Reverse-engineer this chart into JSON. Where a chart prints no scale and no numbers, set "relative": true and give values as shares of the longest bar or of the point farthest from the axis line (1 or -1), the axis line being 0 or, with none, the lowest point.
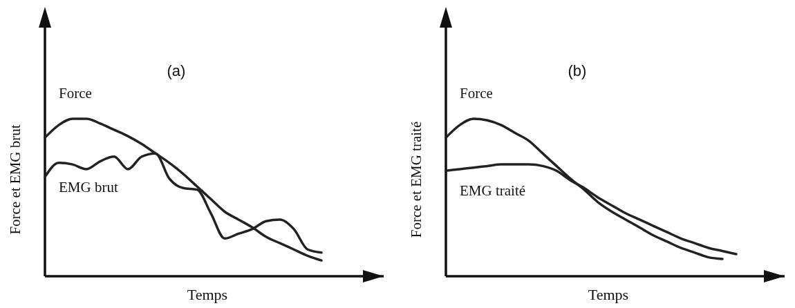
{
  "chart_data": [
    {
      "type": "line",
      "relative": true,
      "title": "(a)",
      "xlabel": "Temps",
      "ylabel": "Force et EMG brut",
      "categories": [
        null,
        null,
        null,
        null,
        null,
        null,
        null,
        null,
        null,
        null,
        null,
        null,
        null,
        null,
        null,
        null,
        null,
        null,
        null,
        null,
        null,
        null,
        null,
        null,
        null
      ],
      "series": [
        {
          "name": "Force",
          "color": "#222222",
          "values": [
            0.88,
            0.96,
            1.0,
            1.0,
            0.97,
            0.93,
            0.89,
            0.84,
            0.78,
            0.72,
            0.65,
            0.57,
            0.49,
            0.41,
            0.36,
            0.31,
            0.25,
            0.21,
            0.17,
            0.13,
            0.1,
            null,
            null,
            null,
            null
          ]
        },
        {
          "name": "EMG brut",
          "color": "#222222",
          "values": [
            0.63,
            0.72,
            0.71,
            0.68,
            0.73,
            0.76,
            0.68,
            0.76,
            0.78,
            0.62,
            0.56,
            0.55,
            0.4,
            0.24,
            0.27,
            0.3,
            0.35,
            0.36,
            0.3,
            0.17,
            0.15,
            null,
            null,
            null,
            null
          ]
        }
      ]
    },
    {
      "type": "line",
      "relative": true,
      "title": "(b)",
      "xlabel": "Temps",
      "ylabel": "Force et EMG traité",
      "categories": [
        null,
        null,
        null,
        null,
        null,
        null,
        null,
        null,
        null,
        null,
        null,
        null,
        null,
        null,
        null,
        null,
        null,
        null,
        null,
        null,
        null,
        null,
        null,
        null,
        null
      ],
      "series": [
        {
          "name": "Force",
          "color": "#222222",
          "values": [
            0.88,
            0.96,
            1.0,
            0.99,
            0.96,
            0.91,
            0.86,
            0.78,
            0.7,
            0.62,
            0.55,
            0.47,
            0.41,
            0.36,
            0.31,
            0.26,
            0.22,
            0.18,
            0.15,
            0.12,
            0.11,
            null,
            null,
            null,
            null
          ]
        },
        {
          "name": "EMG traité",
          "color": "#222222",
          "values": [
            0.67,
            0.68,
            0.69,
            0.7,
            0.71,
            0.71,
            0.71,
            0.7,
            0.67,
            0.61,
            0.56,
            0.5,
            0.45,
            0.4,
            0.36,
            0.32,
            0.28,
            0.24,
            0.21,
            0.18,
            0.16,
            0.14,
            null,
            null,
            null
          ]
        }
      ]
    }
  ]
}
